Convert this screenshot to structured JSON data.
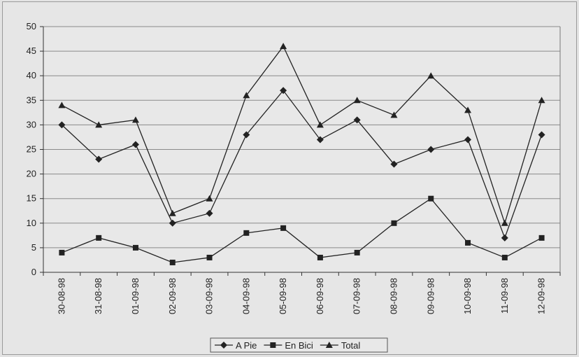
{
  "chart_data": {
    "type": "line",
    "title": "",
    "xlabel": "",
    "ylabel": "",
    "ylim": [
      0,
      50
    ],
    "yticks": [
      0,
      5,
      10,
      15,
      20,
      25,
      30,
      35,
      40,
      45,
      50
    ],
    "grid": true,
    "legend_position": "bottom",
    "categories": [
      "30-08-98",
      "31-08-98",
      "01-09-98",
      "02-09-98",
      "03-09-98",
      "04-09-98",
      "05-09-98",
      "06-09-98",
      "07-09-98",
      "08-09-98",
      "09-09-98",
      "10-09-98",
      "11-09-98",
      "12-09-98"
    ],
    "series": [
      {
        "name": "A Pie",
        "marker": "diamond",
        "color": "#222222",
        "values": [
          30,
          23,
          26,
          10,
          12,
          28,
          37,
          27,
          31,
          22,
          25,
          27,
          7,
          28
        ]
      },
      {
        "name": "En Bici",
        "marker": "square",
        "color": "#222222",
        "values": [
          4,
          7,
          5,
          2,
          3,
          8,
          9,
          3,
          4,
          10,
          15,
          6,
          3,
          7
        ]
      },
      {
        "name": "Total",
        "marker": "triangle",
        "color": "#222222",
        "values": [
          34,
          30,
          31,
          12,
          15,
          36,
          46,
          30,
          35,
          32,
          40,
          33,
          10,
          35
        ]
      }
    ]
  }
}
